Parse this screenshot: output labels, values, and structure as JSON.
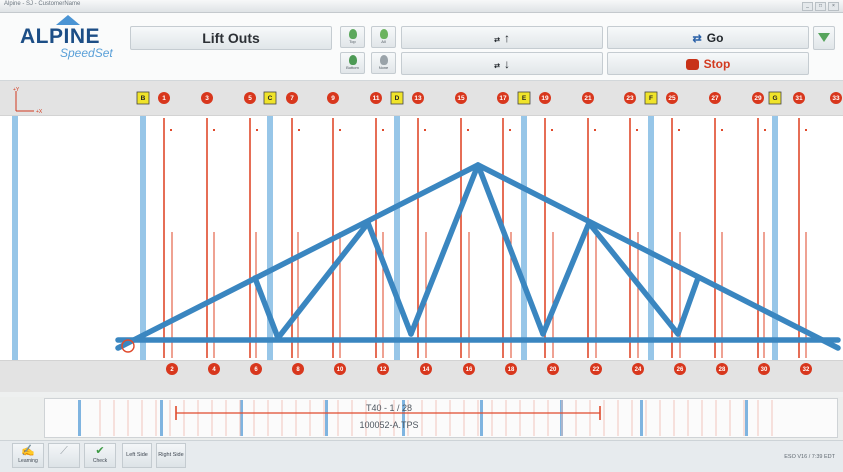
{
  "window": {
    "title": "Alpine - SJ - CustomerName"
  },
  "logo": {
    "word": "ALPINE",
    "sub": "SpeedSet"
  },
  "header": {
    "title": "Lift Outs"
  },
  "tool_buttons": [
    {
      "id": "top",
      "caption": "Top",
      "color": "#5ca85c"
    },
    {
      "id": "all",
      "caption": "All",
      "color": "#6bb35e"
    },
    {
      "id": "bottom",
      "caption": "Bottom",
      "color": "#4d9a55"
    },
    {
      "id": "none",
      "caption": "None",
      "color": "#9aa3a9"
    }
  ],
  "controls": {
    "up_label": "↑",
    "down_label": "↓",
    "prefix_glyph": "⇄",
    "go_label": "Go",
    "stop_label": "Stop",
    "go_glyph": "⇄"
  },
  "axis": {
    "y_label": "+Y",
    "x_label": "+X"
  },
  "top_markers": [
    {
      "label": "B",
      "kind": "letter"
    },
    {
      "label": "1",
      "kind": "num"
    },
    {
      "label": "3",
      "kind": "num"
    },
    {
      "label": "5",
      "kind": "num"
    },
    {
      "label": "C",
      "kind": "letter"
    },
    {
      "label": "7",
      "kind": "num"
    },
    {
      "label": "9",
      "kind": "num"
    },
    {
      "label": "11",
      "kind": "num"
    },
    {
      "label": "D",
      "kind": "letter"
    },
    {
      "label": "13",
      "kind": "num"
    },
    {
      "label": "15",
      "kind": "num"
    },
    {
      "label": "17",
      "kind": "num"
    },
    {
      "label": "E",
      "kind": "letter"
    },
    {
      "label": "19",
      "kind": "num"
    },
    {
      "label": "21",
      "kind": "num"
    },
    {
      "label": "23",
      "kind": "num"
    },
    {
      "label": "F",
      "kind": "letter"
    },
    {
      "label": "25",
      "kind": "num"
    },
    {
      "label": "27",
      "kind": "num"
    },
    {
      "label": "29",
      "kind": "num"
    },
    {
      "label": "G",
      "kind": "letter"
    },
    {
      "label": "31",
      "kind": "num"
    },
    {
      "label": "33",
      "kind": "num"
    }
  ],
  "bottom_markers": [
    "2",
    "4",
    "6",
    "8",
    "10",
    "12",
    "14",
    "16",
    "18",
    "20",
    "22",
    "24",
    "26",
    "28",
    "30",
    "32"
  ],
  "minimap": {
    "line1": "T40 - 1 / 28",
    "line2": "100052-A.TPS"
  },
  "status_buttons": [
    {
      "id": "learning",
      "caption": "Learning",
      "glyph": "✍"
    },
    {
      "id": "ruler",
      "caption": "",
      "glyph": "⟋"
    },
    {
      "id": "check",
      "caption": "Check",
      "glyph": "✔"
    }
  ],
  "side_buttons": {
    "left": "Left Side",
    "right": "Right Side"
  },
  "version": "ESO V16 / 7:39 EDT",
  "colors": {
    "accent_blue": "#4a94d4",
    "truss": "#3a86c0",
    "line_red": "#e04a2c",
    "stop_red": "#c83218"
  }
}
